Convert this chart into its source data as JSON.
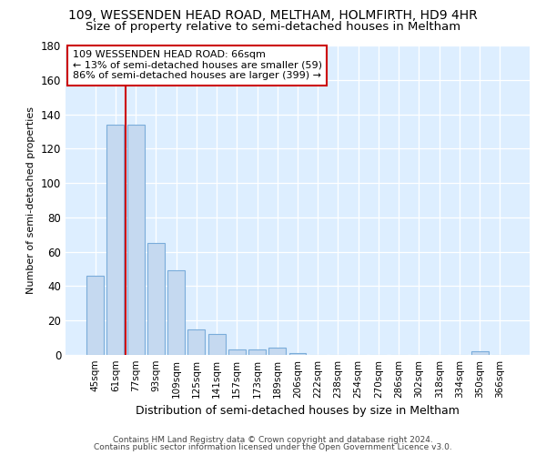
{
  "title": "109, WESSENDEN HEAD ROAD, MELTHAM, HOLMFIRTH, HD9 4HR",
  "subtitle": "Size of property relative to semi-detached houses in Meltham",
  "xlabel": "Distribution of semi-detached houses by size in Meltham",
  "ylabel": "Number of semi-detached properties",
  "bar_labels": [
    "45sqm",
    "61sqm",
    "77sqm",
    "93sqm",
    "109sqm",
    "125sqm",
    "141sqm",
    "157sqm",
    "173sqm",
    "189sqm",
    "206sqm",
    "222sqm",
    "238sqm",
    "254sqm",
    "270sqm",
    "286sqm",
    "302sqm",
    "318sqm",
    "334sqm",
    "350sqm",
    "366sqm"
  ],
  "bar_values": [
    46,
    134,
    134,
    65,
    49,
    15,
    12,
    3,
    3,
    4,
    1,
    0,
    0,
    0,
    0,
    0,
    0,
    0,
    0,
    2,
    0
  ],
  "bar_color": "#c5d9f0",
  "bar_edgecolor": "#7aacda",
  "vline_color": "#cc0000",
  "annotation_title": "109 WESSENDEN HEAD ROAD: 66sqm",
  "annotation_line1": "← 13% of semi-detached houses are smaller (59)",
  "annotation_line2": "86% of semi-detached houses are larger (399) →",
  "annotation_box_edgecolor": "#cc0000",
  "ylim": [
    0,
    180
  ],
  "yticks": [
    0,
    20,
    40,
    60,
    80,
    100,
    120,
    140,
    160,
    180
  ],
  "plot_bg_color": "#ddeeff",
  "fig_bg_color": "#ffffff",
  "footer1": "Contains HM Land Registry data © Crown copyright and database right 2024.",
  "footer2": "Contains public sector information licensed under the Open Government Licence v3.0.",
  "title_fontsize": 10,
  "subtitle_fontsize": 9.5
}
